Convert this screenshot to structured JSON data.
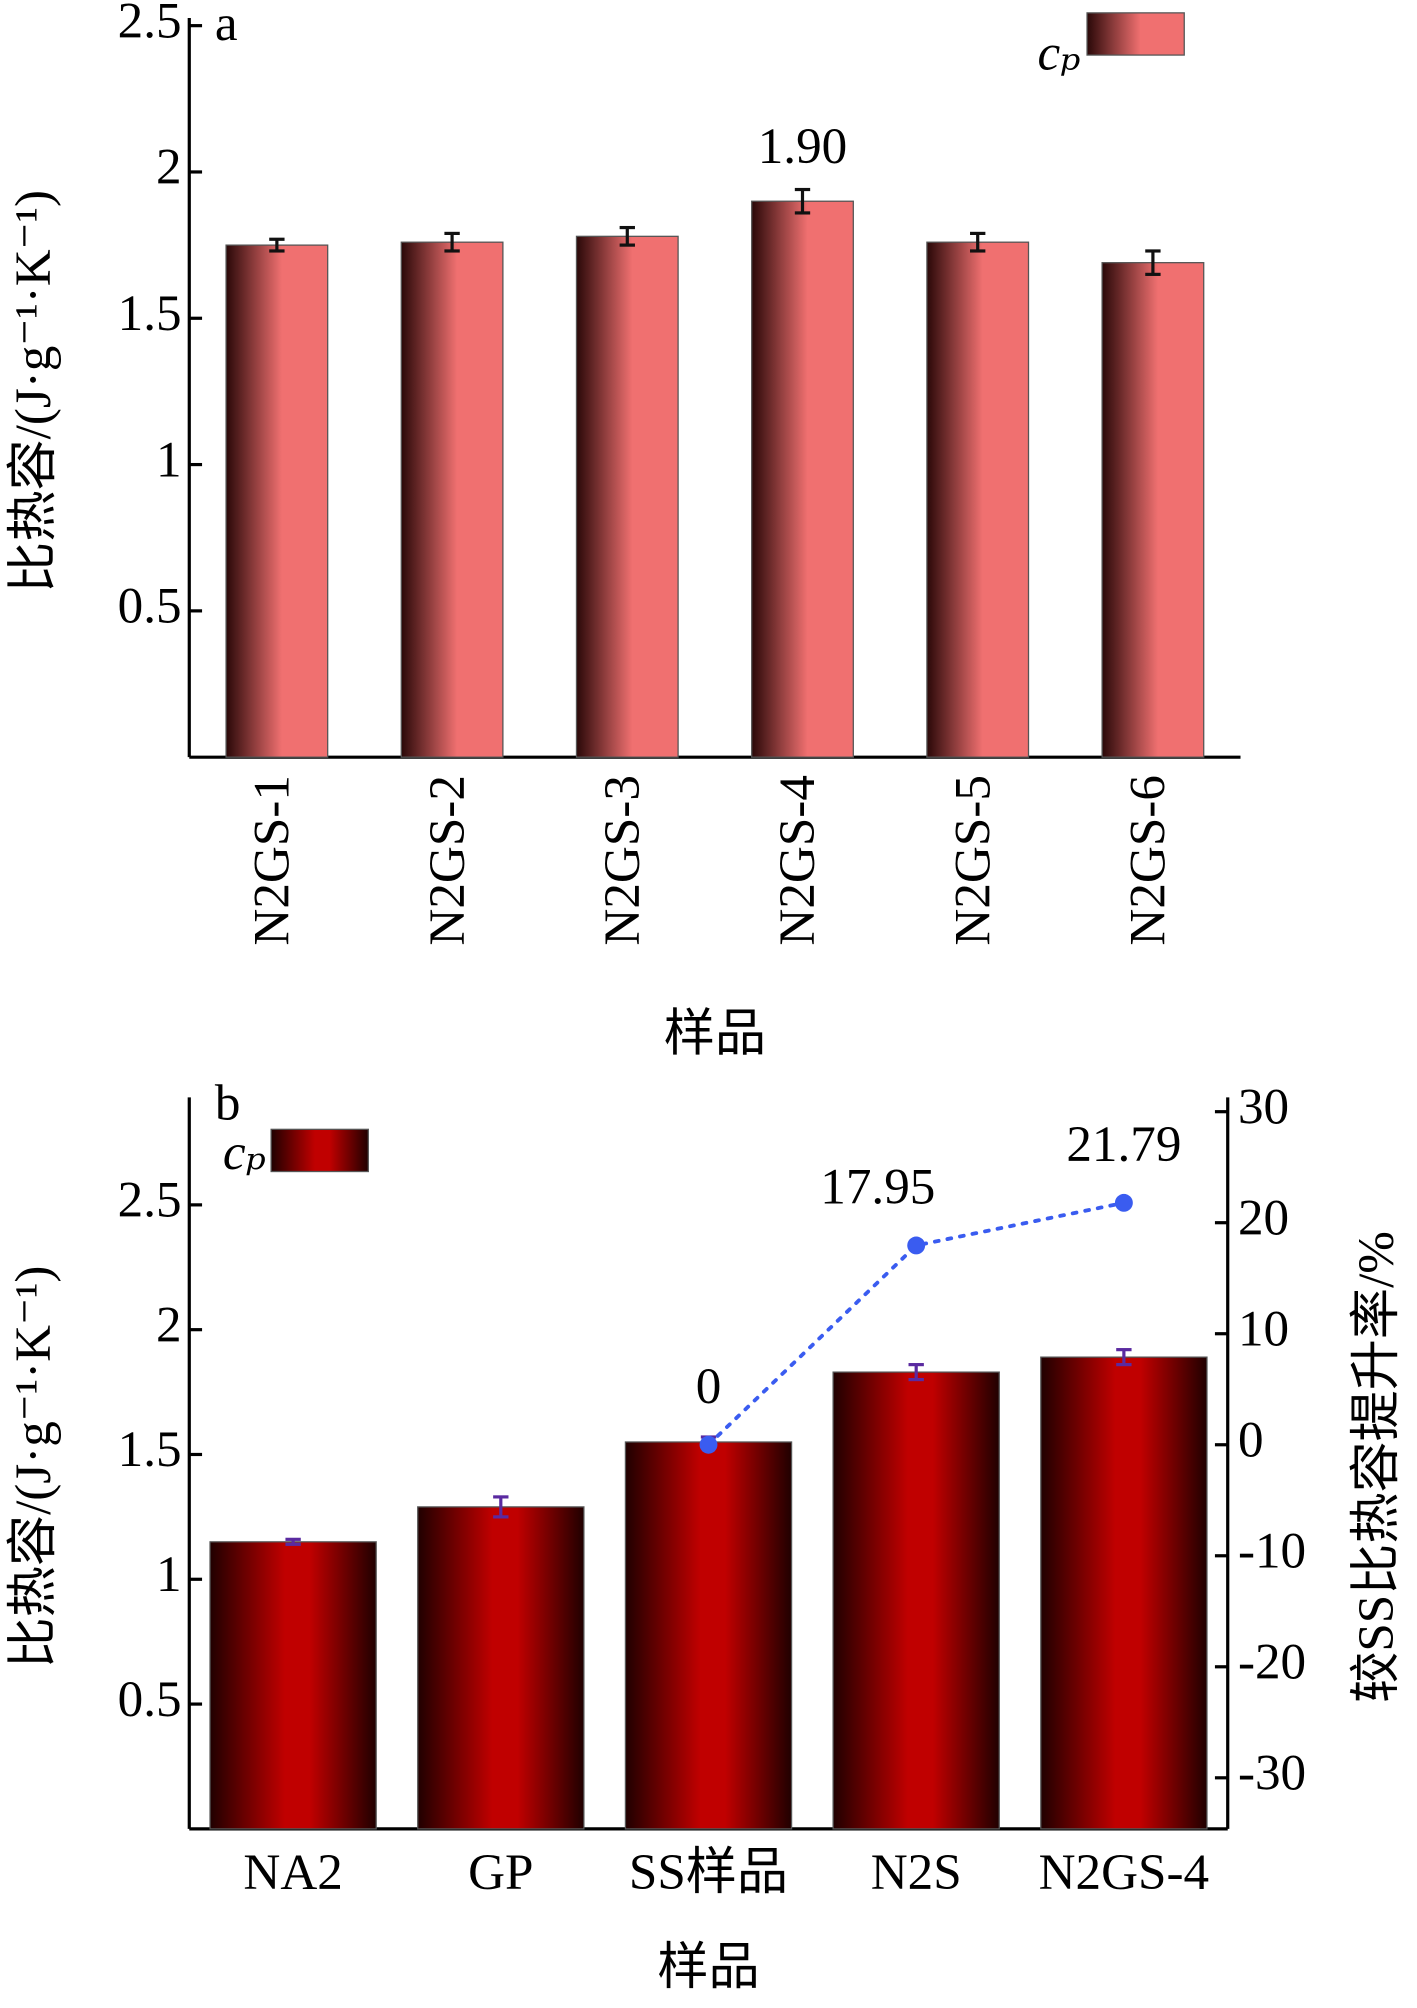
{
  "chart_data": [
    {
      "type": "bar",
      "title": "a",
      "xlabel": "样品",
      "ylabel": "比热容/(J·g⁻¹·K⁻¹)",
      "categories": [
        "N2GS-1",
        "N2GS-2",
        "N2GS-3",
        "N2GS-4",
        "N2GS-5",
        "N2GS-6"
      ],
      "series": [
        {
          "name": "cₚ",
          "color": "#f07070",
          "values": [
            1.75,
            1.76,
            1.78,
            1.9,
            1.76,
            1.69
          ],
          "errors": [
            0.02,
            0.03,
            0.03,
            0.04,
            0.03,
            0.04
          ],
          "value_labels": [
            null,
            null,
            null,
            "1.90",
            null,
            null
          ]
        }
      ],
      "ylim": [
        0,
        2.5
      ],
      "yticks": [
        0.5,
        1,
        1.5,
        2,
        2.5
      ],
      "legend": "upper right"
    },
    {
      "type": "bar",
      "title": "b",
      "xlabel": "样品",
      "ylabel": "比热容/(J·g⁻¹·K⁻¹)",
      "y2label": "较SS比热容提升率/%",
      "categories": [
        "NA2",
        "GP",
        "SS样品",
        "N2S",
        "N2GS-4"
      ],
      "series": [
        {
          "name": "cₚ",
          "color": "#c00000",
          "values": [
            1.15,
            1.29,
            1.55,
            1.83,
            1.89
          ],
          "errors": [
            0.01,
            0.04,
            0.02,
            0.03,
            0.03
          ]
        },
        {
          "type": "line",
          "axis": "y2",
          "color": "#3a5cf0",
          "linestyle": "dotted",
          "data_labels": true,
          "values": [
            null,
            null,
            0,
            17.95,
            21.79
          ]
        }
      ],
      "ylim": [
        0,
        2.9
      ],
      "yticks": [
        0.5,
        1,
        1.5,
        2,
        2.5
      ],
      "y2lim": [
        -34.6,
        30.6
      ],
      "y2ticks": [
        -30,
        -20,
        -10,
        0,
        10,
        20,
        30
      ],
      "legend": "upper left"
    }
  ]
}
